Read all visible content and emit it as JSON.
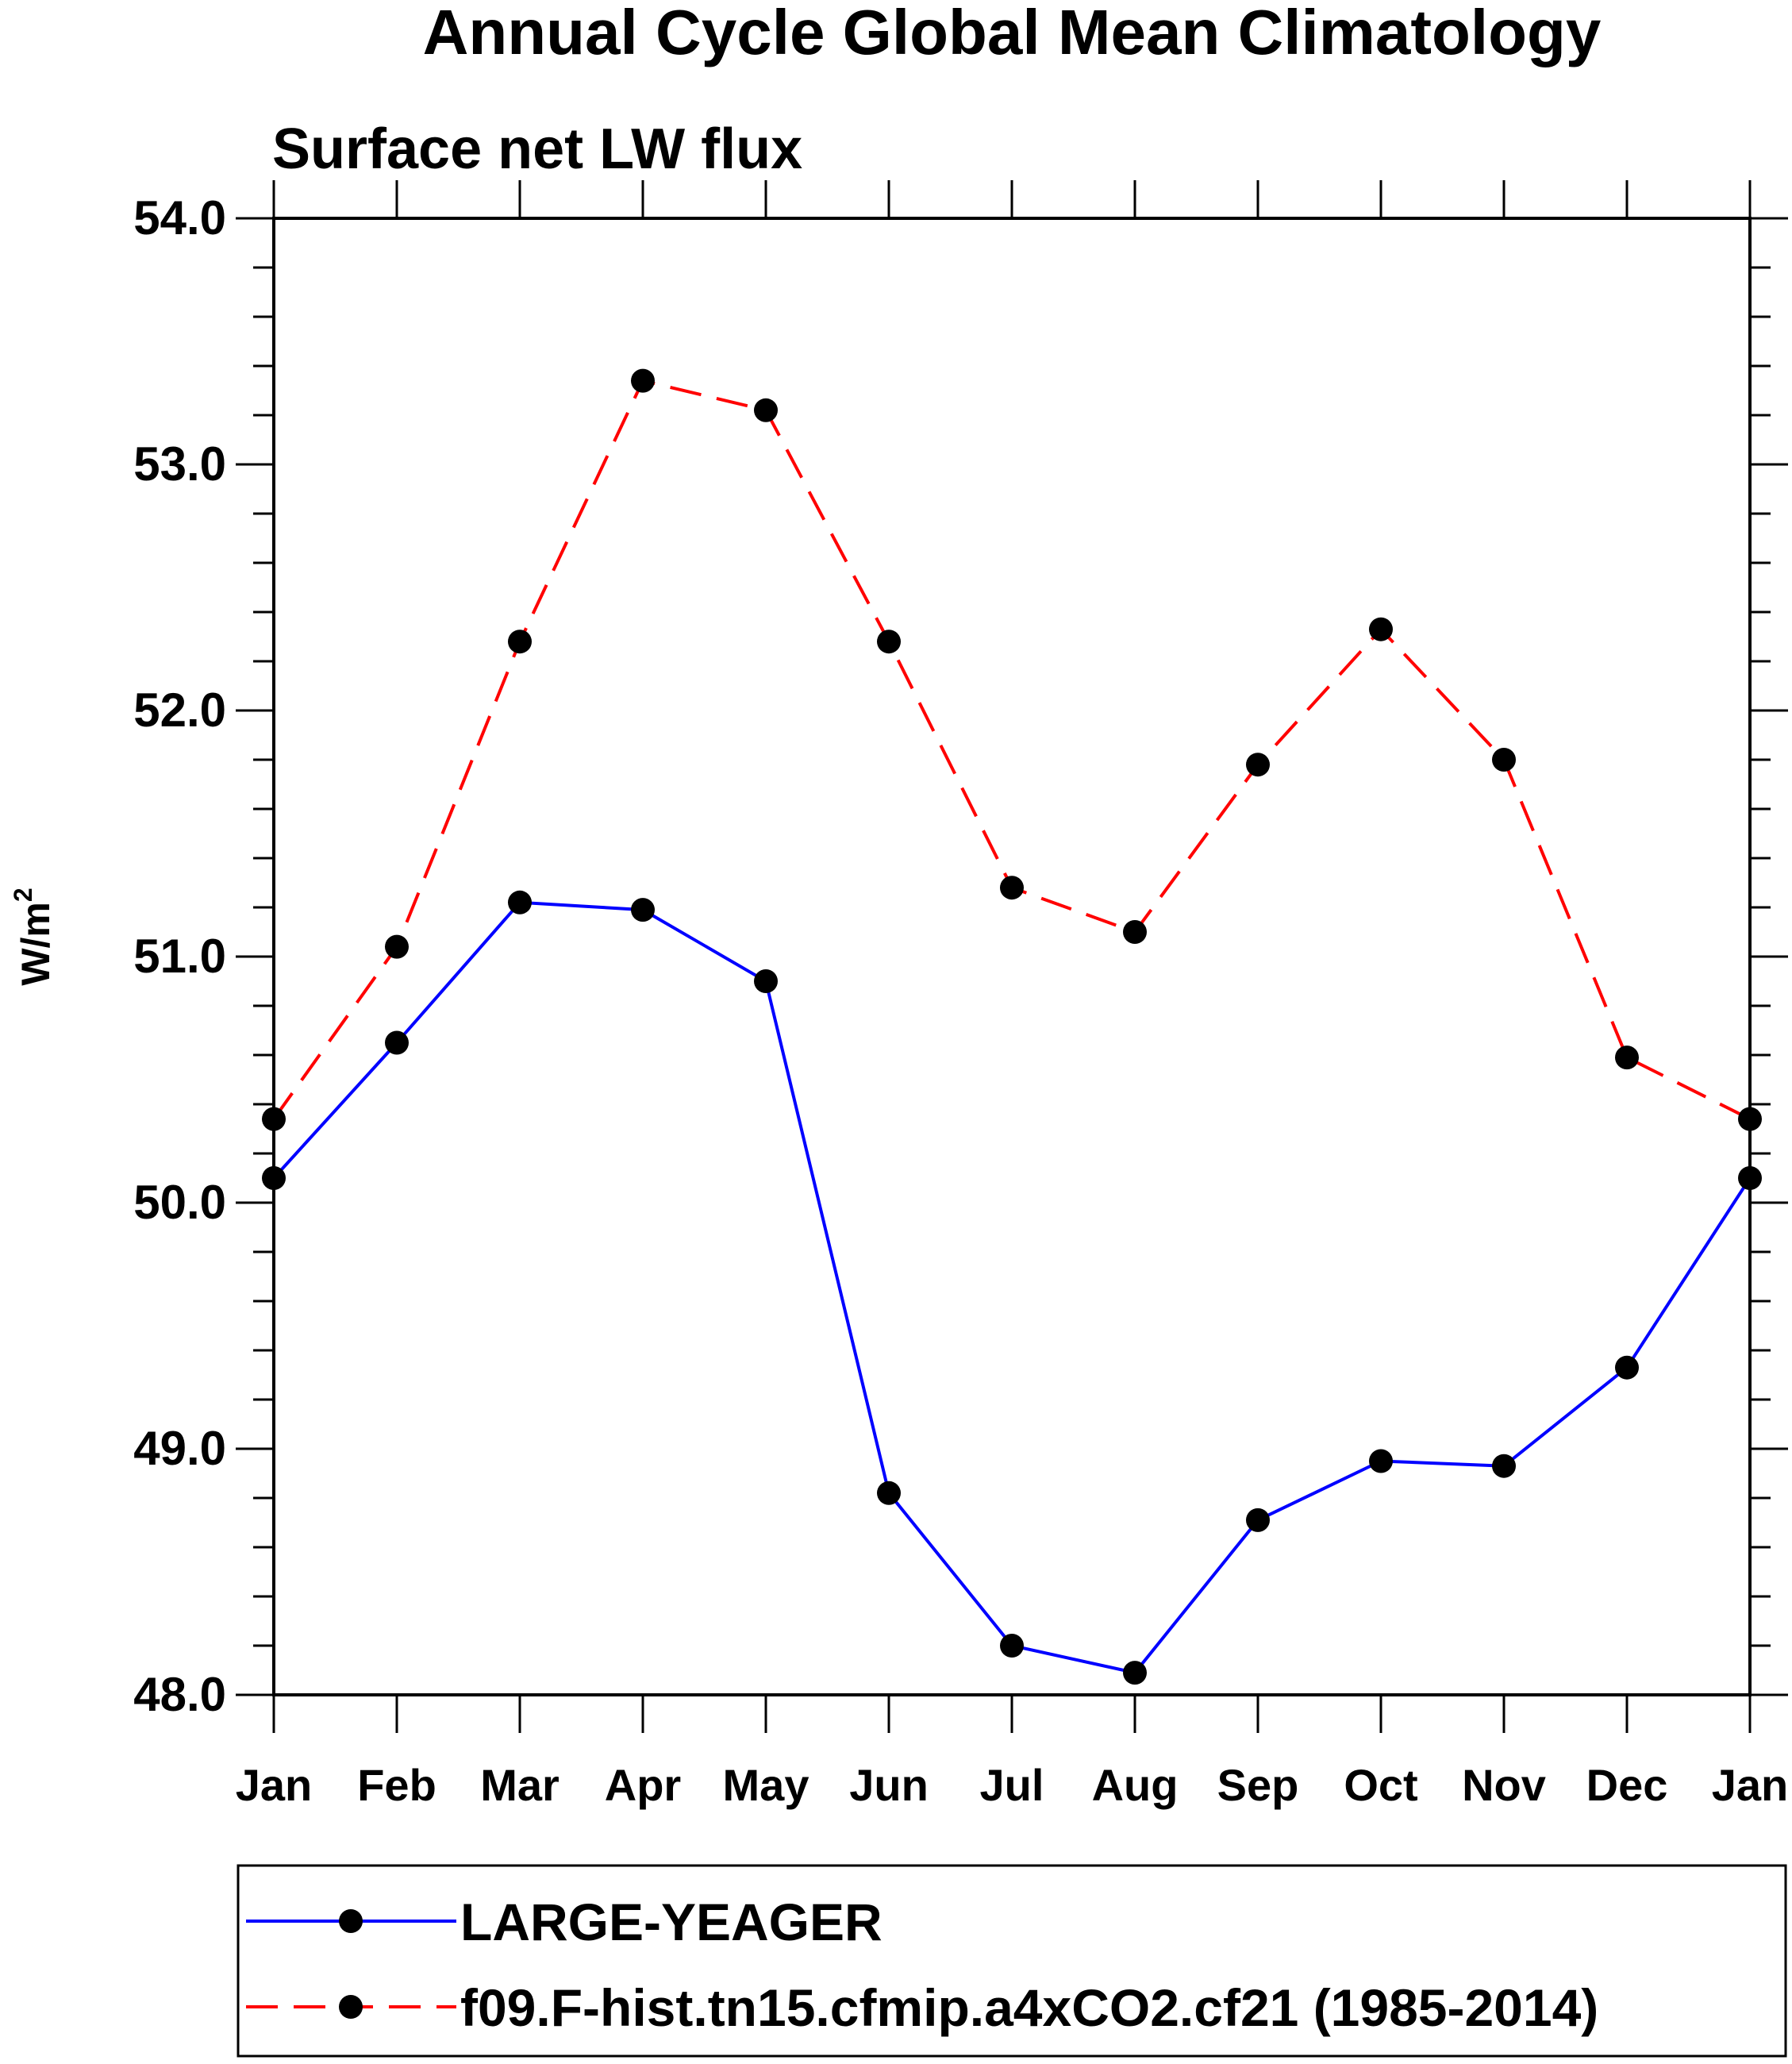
{
  "chart_data": {
    "type": "line",
    "title": "Annual Cycle Global Mean Climatology",
    "subtitle": "Surface net LW flux",
    "ylabel": "W/m",
    "ylabel_sup": "2",
    "xlabel": "",
    "categories": [
      "Jan",
      "Feb",
      "Mar",
      "Apr",
      "May",
      "Jun",
      "Jul",
      "Aug",
      "Sep",
      "Oct",
      "Nov",
      "Dec",
      "Jan"
    ],
    "ylim": [
      48.0,
      54.0
    ],
    "yticks": [
      "48.0",
      "49.0",
      "50.0",
      "51.0",
      "52.0",
      "53.0",
      "54.0"
    ],
    "grid": false,
    "legend_position": "bottom",
    "series": [
      {
        "name": "LARGE-YEAGER",
        "color": "#0000ff",
        "style": "solid",
        "marker": "filled-circle",
        "values": [
          50.1,
          50.65,
          51.22,
          51.19,
          50.9,
          48.82,
          48.2,
          48.09,
          48.71,
          48.95,
          48.93,
          49.33,
          50.1
        ]
      },
      {
        "name": "f09.F-hist.tn15.cfmip.a4xCO2.cf21 (1985-2014)",
        "color": "#ff0000",
        "style": "dashed",
        "marker": "filled-circle",
        "values": [
          50.34,
          51.04,
          52.28,
          53.34,
          53.22,
          52.28,
          51.28,
          51.1,
          51.78,
          52.33,
          51.8,
          50.59,
          50.34
        ]
      }
    ]
  }
}
